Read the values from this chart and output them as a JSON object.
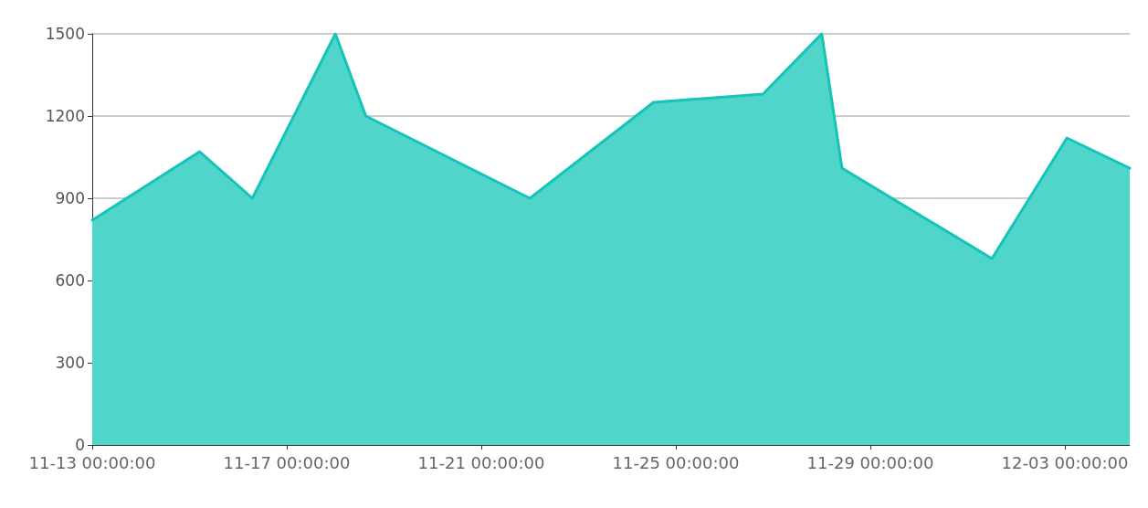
{
  "chart_data": {
    "type": "area",
    "x": [
      "--11-13T00:00",
      "--11-15T05:00",
      "--11-16T07:00",
      "--11-18T00:00",
      "--11-18T15:00",
      "--11-22T00:00",
      "--11-24T13:00",
      "--11-26T19:00",
      "--11-28T00:00",
      "--11-28T10:00",
      "--12-01T12:00",
      "--12-03T01:00",
      "--12-04T08:00"
    ],
    "series": [
      {
        "color": "#4fd5c9",
        "values": [
          820,
          1070,
          900,
          1500,
          1200,
          900,
          1250,
          1280,
          1500,
          1010,
          680,
          1120,
          1010
        ]
      }
    ],
    "xlim": [
      "--11-13T00:00",
      "--12-04T08:00"
    ],
    "xticks": [
      {
        "value": "--11-13T00:00",
        "label": "11-13 00:00:00"
      },
      {
        "value": "--11-17T00:00",
        "label": "11-17 00:00:00"
      },
      {
        "value": "--11-21T00:00",
        "label": "11-21 00:00:00"
      },
      {
        "value": "--11-25T00:00",
        "label": "11-25 00:00:00"
      },
      {
        "value": "--11-29T00:00",
        "label": "11-29 00:00:00"
      },
      {
        "value": "--12-03T00:00",
        "label": "12-03 00:00:00"
      }
    ],
    "ylim": [
      0,
      1500
    ],
    "yticks": [
      0,
      300,
      600,
      900,
      1200,
      1500
    ],
    "grid": "y",
    "marker": "none",
    "line_style": "solid"
  }
}
